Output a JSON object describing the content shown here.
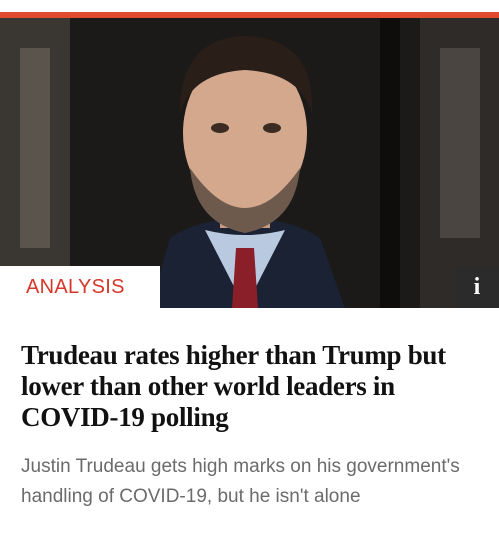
{
  "card": {
    "label": "ANALYSIS",
    "info": "i",
    "headline": "Trudeau rates higher than Trump but lower than other world leaders in COVID-19 polling",
    "dek": "Justin Trudeau gets high marks on his government's handling of COVID-19, but he isn't alone"
  }
}
